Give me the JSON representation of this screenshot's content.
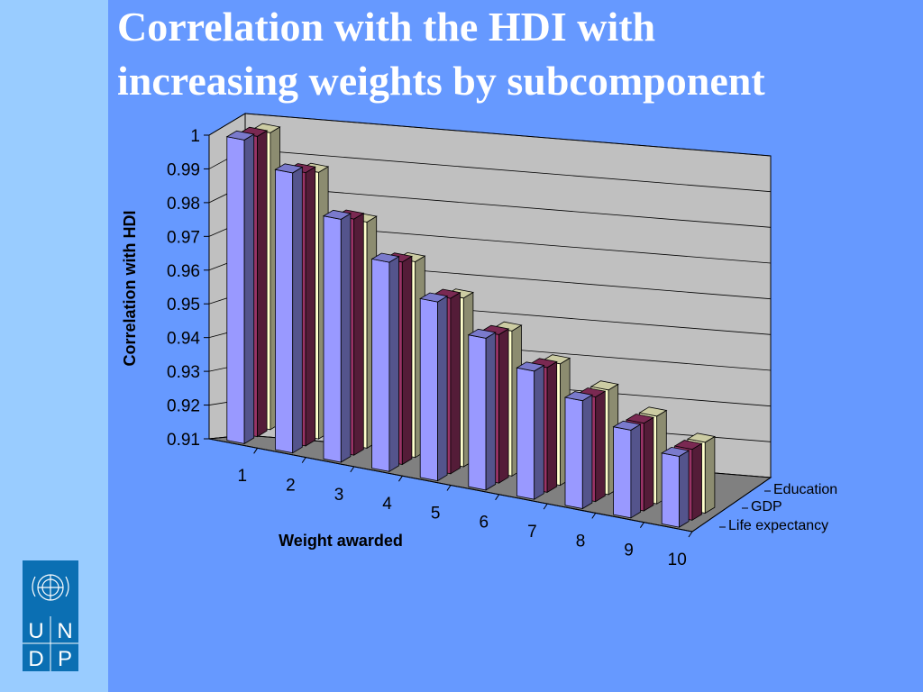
{
  "slide": {
    "title_line1": "Correlation with the HDI with",
    "title_line2": "increasing weights by subcomponent"
  },
  "logo": {
    "letters": [
      "U",
      "N",
      "D",
      "P"
    ]
  },
  "colors": {
    "background": "#6699ff",
    "sidebar": "#99ccff",
    "logo": "#0b6fb3"
  },
  "chart_data": {
    "type": "bar",
    "subtype": "3d-clustered-column",
    "categories": [
      "1",
      "2",
      "3",
      "4",
      "5",
      "6",
      "7",
      "8",
      "9",
      "10"
    ],
    "series": [
      {
        "name": "Life expectancy",
        "color": "#9999ff",
        "values": [
          1.0,
          0.993,
          0.982,
          0.972,
          0.963,
          0.955,
          0.948,
          0.942,
          0.936,
          0.931
        ]
      },
      {
        "name": "GDP",
        "color": "#993366",
        "values": [
          0.999,
          0.991,
          0.98,
          0.97,
          0.962,
          0.954,
          0.947,
          0.941,
          0.936,
          0.931
        ]
      },
      {
        "name": "Education",
        "color": "#ffffcc",
        "values": [
          0.998,
          0.989,
          0.977,
          0.968,
          0.96,
          0.953,
          0.946,
          0.941,
          0.936,
          0.931
        ]
      }
    ],
    "ylabel": "Correlation with HDI",
    "xlabel": "Weight awarded",
    "ylim": [
      0.91,
      1.0
    ],
    "yticks": [
      "0.91",
      "0.92",
      "0.93",
      "0.94",
      "0.95",
      "0.96",
      "0.97",
      "0.98",
      "0.99",
      "1"
    ],
    "grid": true,
    "legend_position": "right"
  }
}
